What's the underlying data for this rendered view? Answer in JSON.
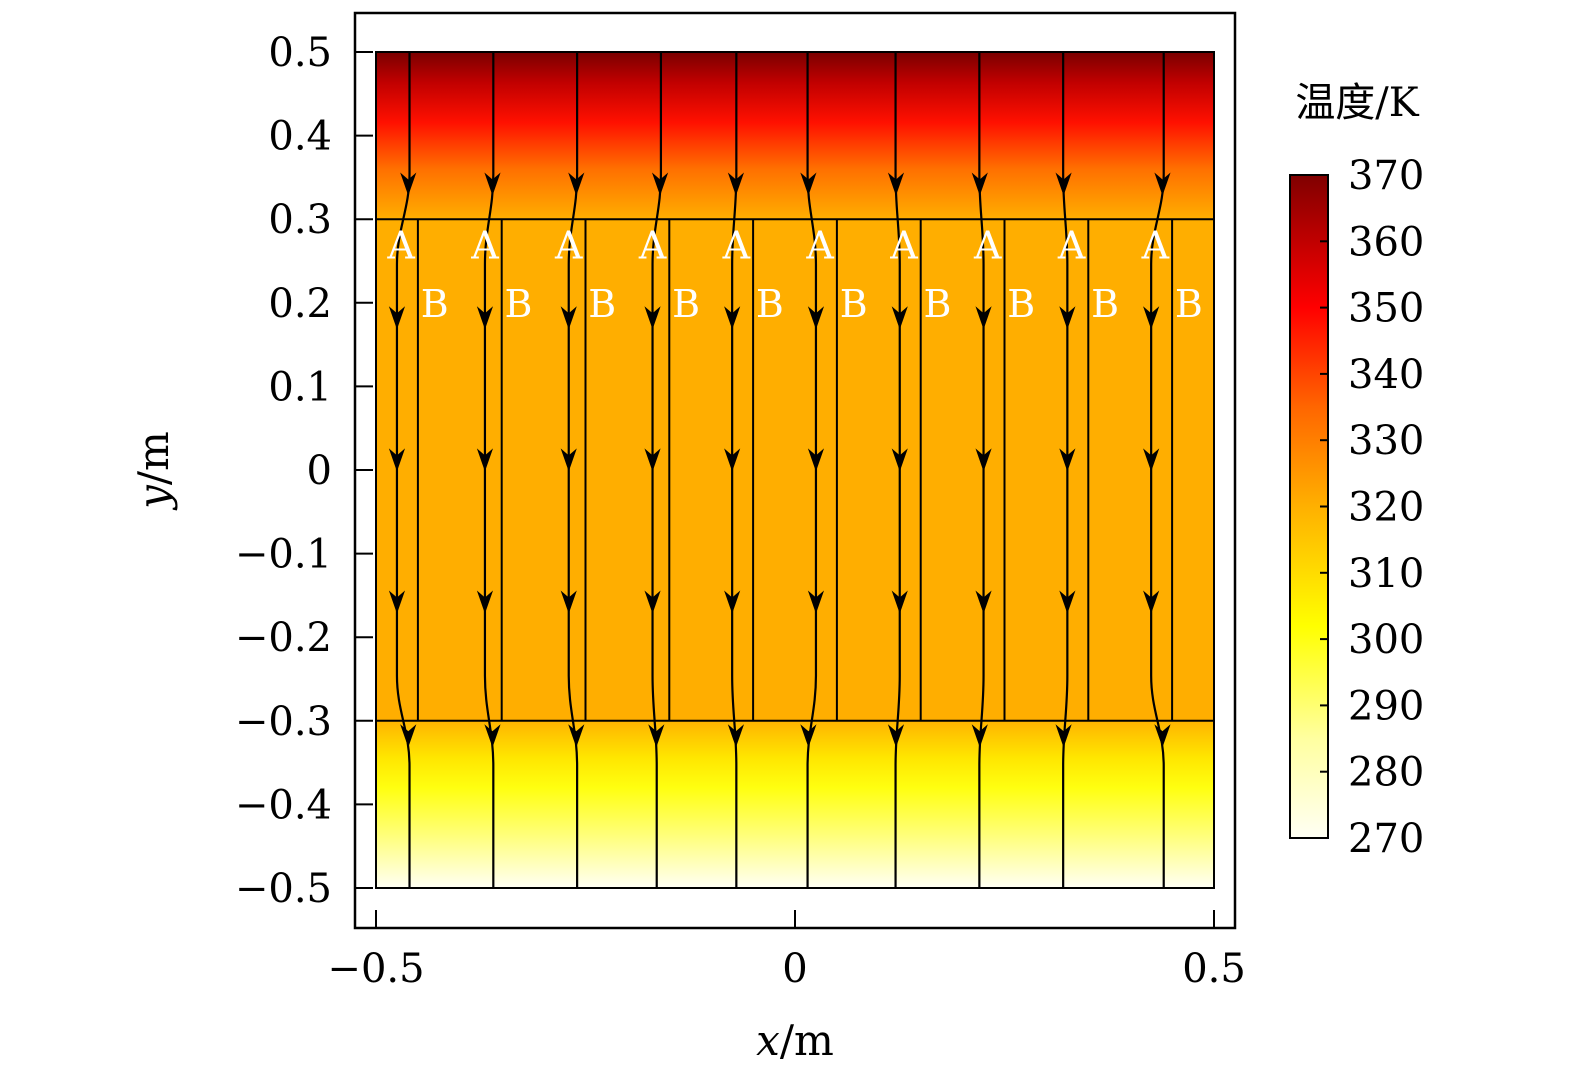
{
  "chart_data": {
    "type": "heatmap",
    "title": "",
    "xlabel": {
      "var": "x",
      "unit": "/m"
    },
    "ylabel": {
      "var": "y",
      "unit": "/m"
    },
    "xlim": [
      -0.5,
      0.5
    ],
    "ylim": [
      -0.5,
      0.5
    ],
    "x_ticks": [
      -0.5,
      0,
      0.5
    ],
    "x_tick_labels": [
      "−0.5",
      "0",
      "0.5"
    ],
    "y_ticks": [
      0.5,
      0.4,
      0.3,
      0.2,
      0.1,
      0,
      -0.1,
      -0.2,
      -0.3,
      -0.4,
      -0.5
    ],
    "y_tick_labels": [
      "0.5",
      "0.4",
      "0.3",
      "0.2",
      "0.1",
      "0",
      "−0.1",
      "−0.2",
      "−0.3",
      "−0.4",
      "−0.5"
    ],
    "colorbar": {
      "title": "温度/K",
      "ticks": [
        370,
        360,
        350,
        340,
        330,
        320,
        310,
        300,
        290,
        280,
        270
      ],
      "tick_labels": [
        "370",
        "360",
        "350",
        "340",
        "330",
        "320",
        "310",
        "300",
        "290",
        "280",
        "270"
      ],
      "range": [
        270,
        370
      ],
      "colors": [
        "#fffff2",
        "#ffff99",
        "#ffff00",
        "#ffb000",
        "#ff6600",
        "#ff0000",
        "#c80000",
        "#800000"
      ]
    },
    "temperature_field": {
      "unit": "K",
      "top_region": {
        "y_range": [
          0.3,
          0.5
        ],
        "temperature_at_y": [
          [
            0.5,
            370
          ],
          [
            0.42,
            350
          ],
          [
            0.3,
            322
          ]
        ]
      },
      "middle_region": {
        "y_range": [
          -0.3,
          0.3
        ],
        "temperature": 322
      },
      "bottom_region": {
        "y_range": [
          -0.5,
          -0.3
        ],
        "temperature_at_y": [
          [
            -0.3,
            320
          ],
          [
            -0.36,
            306
          ],
          [
            -0.5,
            272
          ]
        ]
      }
    },
    "interfaces_y": [
      0.3,
      -0.3
    ],
    "strip_boundaries_x": [
      -0.45,
      -0.35,
      -0.25,
      -0.15,
      -0.05,
      0.05,
      0.15,
      0.25,
      0.35,
      0.45
    ],
    "region_labels": [
      {
        "text": "A",
        "x": -0.47,
        "y": 0.27
      },
      {
        "text": "A",
        "x": -0.37,
        "y": 0.27
      },
      {
        "text": "A",
        "x": -0.27,
        "y": 0.27
      },
      {
        "text": "A",
        "x": -0.17,
        "y": 0.27
      },
      {
        "text": "A",
        "x": -0.07,
        "y": 0.27
      },
      {
        "text": "A",
        "x": 0.03,
        "y": 0.27
      },
      {
        "text": "A",
        "x": 0.13,
        "y": 0.27
      },
      {
        "text": "A",
        "x": 0.23,
        "y": 0.27
      },
      {
        "text": "A",
        "x": 0.33,
        "y": 0.27
      },
      {
        "text": "A",
        "x": 0.43,
        "y": 0.27
      },
      {
        "text": "B",
        "x": -0.43,
        "y": 0.2
      },
      {
        "text": "B",
        "x": -0.33,
        "y": 0.2
      },
      {
        "text": "B",
        "x": -0.23,
        "y": 0.2
      },
      {
        "text": "B",
        "x": -0.13,
        "y": 0.2
      },
      {
        "text": "B",
        "x": -0.03,
        "y": 0.2
      },
      {
        "text": "B",
        "x": 0.07,
        "y": 0.2
      },
      {
        "text": "B",
        "x": 0.17,
        "y": 0.2
      },
      {
        "text": "B",
        "x": 0.27,
        "y": 0.2
      },
      {
        "text": "B",
        "x": 0.37,
        "y": 0.2
      },
      {
        "text": "B",
        "x": 0.47,
        "y": 0.2
      }
    ],
    "heat_flux_lines": [
      {
        "x_top": -0.46,
        "x_middle": -0.475,
        "x_bottom": -0.46
      },
      {
        "x_top": -0.36,
        "x_middle": -0.37,
        "x_bottom": -0.36
      },
      {
        "x_top": -0.26,
        "x_middle": -0.27,
        "x_bottom": -0.26
      },
      {
        "x_top": -0.16,
        "x_middle": -0.17,
        "x_bottom": -0.165
      },
      {
        "x_top": -0.07,
        "x_middle": -0.075,
        "x_bottom": -0.07
      },
      {
        "x_top": 0.015,
        "x_middle": 0.025,
        "x_bottom": 0.015
      },
      {
        "x_top": 0.12,
        "x_middle": 0.125,
        "x_bottom": 0.12
      },
      {
        "x_top": 0.22,
        "x_middle": 0.225,
        "x_bottom": 0.22
      },
      {
        "x_top": 0.32,
        "x_middle": 0.325,
        "x_bottom": 0.32
      },
      {
        "x_top": 0.44,
        "x_middle": 0.425,
        "x_bottom": 0.44
      }
    ],
    "arrow_positions_y": [
      0.33,
      0.17,
      0.0,
      -0.17,
      -0.33
    ],
    "flux_direction": "downward",
    "legend": "none",
    "grid": false
  }
}
